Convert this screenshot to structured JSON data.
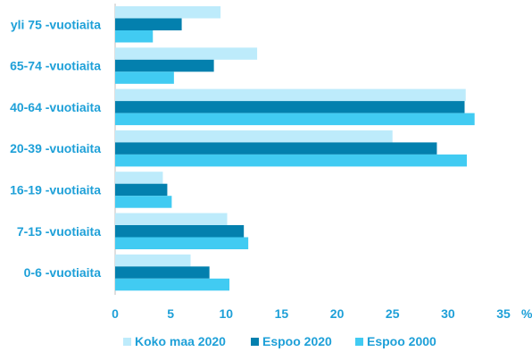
{
  "chart_data": {
    "type": "bar",
    "orientation": "horizontal",
    "categories": [
      "yli 75 -vuotiaita",
      "65-74 -vuotiaita",
      "40-64 -vuotiaita",
      "20-39 -vuotiaita",
      "16-19 -vuotiaita",
      "7-15 -vuotiaita",
      "0-6 -vuotiaita"
    ],
    "series": [
      {
        "name": "Koko maa 2020",
        "color": "#bdebfb",
        "values": [
          9.5,
          12.8,
          31.6,
          25.0,
          4.3,
          10.1,
          6.8
        ]
      },
      {
        "name": "Espoo 2020",
        "color": "#0380ae",
        "values": [
          6.0,
          8.9,
          31.5,
          29.0,
          4.7,
          11.6,
          8.5
        ]
      },
      {
        "name": "Espoo 2000",
        "color": "#41cbf2",
        "values": [
          3.4,
          5.3,
          32.4,
          31.7,
          5.1,
          12.0,
          10.3
        ]
      }
    ],
    "xlim": [
      0,
      35
    ],
    "xticks": [
      0,
      5,
      10,
      15,
      20,
      25,
      30,
      35
    ],
    "unit": "%",
    "title": "",
    "xlabel": "",
    "ylabel": "",
    "grid": false,
    "legend": "bottom"
  }
}
